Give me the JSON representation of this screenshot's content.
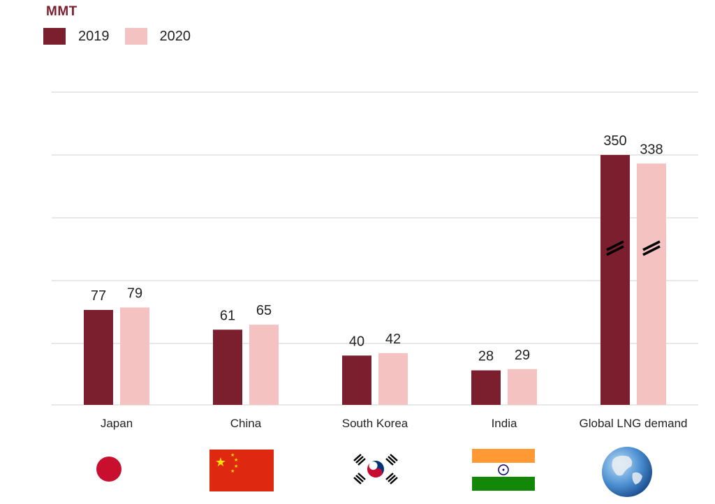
{
  "chart_data": {
    "type": "bar",
    "unit_label": "MMT",
    "categories": [
      "Japan",
      "China",
      "South Korea",
      "India",
      "Global LNG demand"
    ],
    "series": [
      {
        "name": "2019",
        "values": [
          77,
          61,
          40,
          28,
          350
        ],
        "color": "#7b1f2e"
      },
      {
        "name": "2020",
        "values": [
          79,
          65,
          42,
          29,
          338
        ],
        "color": "#f4c2c0"
      }
    ],
    "broken_axis_category": "Global LNG demand",
    "grid": true,
    "legend_position": "top-left",
    "title": "",
    "xlabel": "",
    "ylabel": ""
  },
  "flags": [
    {
      "category": "Japan",
      "icon": "japan-flag-icon"
    },
    {
      "category": "China",
      "icon": "china-flag-icon"
    },
    {
      "category": "South Korea",
      "icon": "south-korea-flag-icon"
    },
    {
      "category": "India",
      "icon": "india-flag-icon"
    },
    {
      "category": "Global LNG demand",
      "icon": "globe-icon"
    }
  ]
}
